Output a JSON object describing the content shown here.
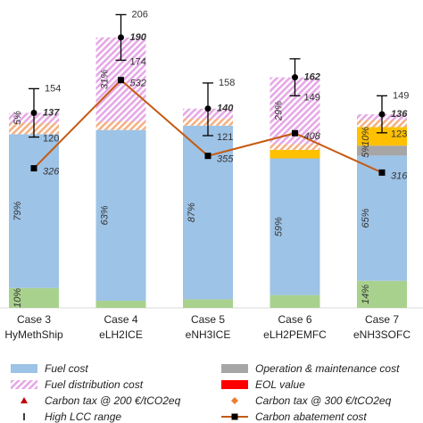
{
  "chart_data": {
    "type": "stacked_bar",
    "categories": [
      [
        "Case 3",
        "HyMethShip"
      ],
      [
        "Case 4",
        "eLH2ICE"
      ],
      [
        "Case 5",
        "eNH3ICE"
      ],
      [
        "Case 6",
        "eLH2PEMFC"
      ],
      [
        "Case 7",
        "eNH3SOFC"
      ]
    ],
    "ylim": [
      0,
      216.3
    ],
    "y2lim": [
      0,
      719
    ],
    "series": [
      {
        "color": "#a9d18e",
        "values": [
          14,
          5,
          6,
          9,
          19
        ],
        "share_labels": [
          "10%",
          null,
          null,
          null,
          "14%"
        ]
      },
      {
        "name": "Fuel cost",
        "color": "#9dc3e6",
        "values": [
          108,
          120,
          122,
          96,
          88
        ],
        "share_labels": [
          "79%",
          "63%",
          "87%",
          "59%",
          "65%"
        ]
      },
      {
        "name": "Operation & maintenance cost",
        "color": "#a6a6a6",
        "values": [
          0,
          0,
          0,
          0,
          7
        ],
        "share_labels": [
          null,
          null,
          null,
          null,
          "5%"
        ]
      },
      {
        "color": "#ffc000",
        "values": [
          0,
          0,
          0,
          6,
          13
        ],
        "share_labels": [
          null,
          null,
          null,
          null,
          "10%"
        ]
      },
      {
        "color": "#e6a8e6",
        "hatch": true,
        "values": [
          8,
          6,
          5,
          4,
          5
        ],
        "share_labels": [
          null,
          null,
          null,
          null,
          null
        ]
      },
      {
        "name": "Fuel distribution cost",
        "color": "#f4b183",
        "hatch": true,
        "values": [
          7,
          59,
          7,
          47,
          4
        ],
        "share_labels": [
          "5%",
          "31%",
          null,
          "29%",
          null
        ]
      }
    ],
    "legend_only": [
      {
        "name": "EOL value",
        "color": "#ff0000",
        "symbol": "rect"
      },
      {
        "name": "Carbon tax @ 200 €/tCO2eq",
        "color": "#c00000",
        "symbol": "triangle"
      },
      {
        "name": "Carbon tax @ 300 €/tCO2eq",
        "color": "#ed7d31",
        "symbol": "diamond"
      }
    ],
    "range": {
      "name": "High LCC range",
      "color": "#000000",
      "values": [
        137,
        190,
        140,
        162,
        136
      ],
      "low": [
        120,
        174,
        121,
        149,
        123
      ],
      "high": [
        154,
        206,
        158,
        175,
        149
      ],
      "high_labels": [
        "154",
        "206",
        "158",
        null,
        "149"
      ]
    },
    "line": {
      "name": "Carbon abatement cost",
      "color": "#c55a11",
      "axis": "y2",
      "values": [
        326,
        532,
        355,
        408,
        316
      ]
    }
  }
}
